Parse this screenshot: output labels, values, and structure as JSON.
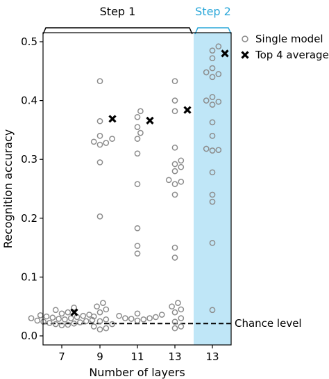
{
  "colors": {
    "single_marker": "#8c8c8c",
    "average_marker": "#000000",
    "highlight_band": "#bfe6f7",
    "step2_accent": "#2aa7d9",
    "axis": "#000000"
  },
  "chart_data": {
    "type": "scatter",
    "xlabel": "Number of layers",
    "ylabel": "Recognition accuracy",
    "ylim": [
      0,
      0.5
    ],
    "yticks": [
      "0.0",
      "0.1",
      "0.2",
      "0.3",
      "0.4",
      "0.5"
    ],
    "ytick_values": [
      0,
      0.1,
      0.2,
      0.3,
      0.4,
      0.5
    ],
    "categories": [
      "7",
      "9",
      "11",
      "13",
      "13"
    ],
    "highlighted_category_index": 4,
    "brackets": [
      {
        "label": "Step 1",
        "from_index": 0,
        "to_index": 3
      },
      {
        "label": "Step 2",
        "from_index": 4,
        "to_index": 4
      }
    ],
    "legend": {
      "position": "top-right",
      "single_label": "Single model",
      "average_label": "Top 4 average"
    },
    "chance_level": {
      "label": "Chance level",
      "value": 0.021
    },
    "series": [
      {
        "name": "Single model",
        "marker": "circle",
        "groups": [
          [
            0.048,
            0.044,
            0.04,
            0.038,
            0.036,
            0.035,
            0.034,
            0.033,
            0.032,
            0.031,
            0.03,
            0.03,
            0.029,
            0.028,
            0.027,
            0.026,
            0.025,
            0.024,
            0.023,
            0.022,
            0.021,
            0.02,
            0.019,
            0.018
          ],
          [
            0.433,
            0.365,
            0.34,
            0.335,
            0.33,
            0.328,
            0.325,
            0.295,
            0.203,
            0.056,
            0.05,
            0.045,
            0.04,
            0.033,
            0.028,
            0.025,
            0.02,
            0.016,
            0.013,
            0.011
          ],
          [
            0.382,
            0.372,
            0.355,
            0.345,
            0.335,
            0.31,
            0.258,
            0.183,
            0.153,
            0.14,
            0.038,
            0.036,
            0.034,
            0.032,
            0.03,
            0.03,
            0.029,
            0.028,
            0.026
          ],
          [
            0.433,
            0.4,
            0.382,
            0.32,
            0.298,
            0.292,
            0.287,
            0.28,
            0.265,
            0.262,
            0.258,
            0.24,
            0.15,
            0.133,
            0.056,
            0.05,
            0.045,
            0.04,
            0.03,
            0.024,
            0.016,
            0.013
          ],
          [
            0.492,
            0.485,
            0.472,
            0.455,
            0.448,
            0.445,
            0.44,
            0.406,
            0.4,
            0.398,
            0.393,
            0.363,
            0.34,
            0.318,
            0.316,
            0.315,
            0.278,
            0.24,
            0.228,
            0.158,
            0.044
          ]
        ]
      },
      {
        "name": "Top 4 average",
        "marker": "x",
        "values": [
          0.04,
          0.369,
          0.366,
          0.384,
          0.48
        ]
      }
    ]
  }
}
